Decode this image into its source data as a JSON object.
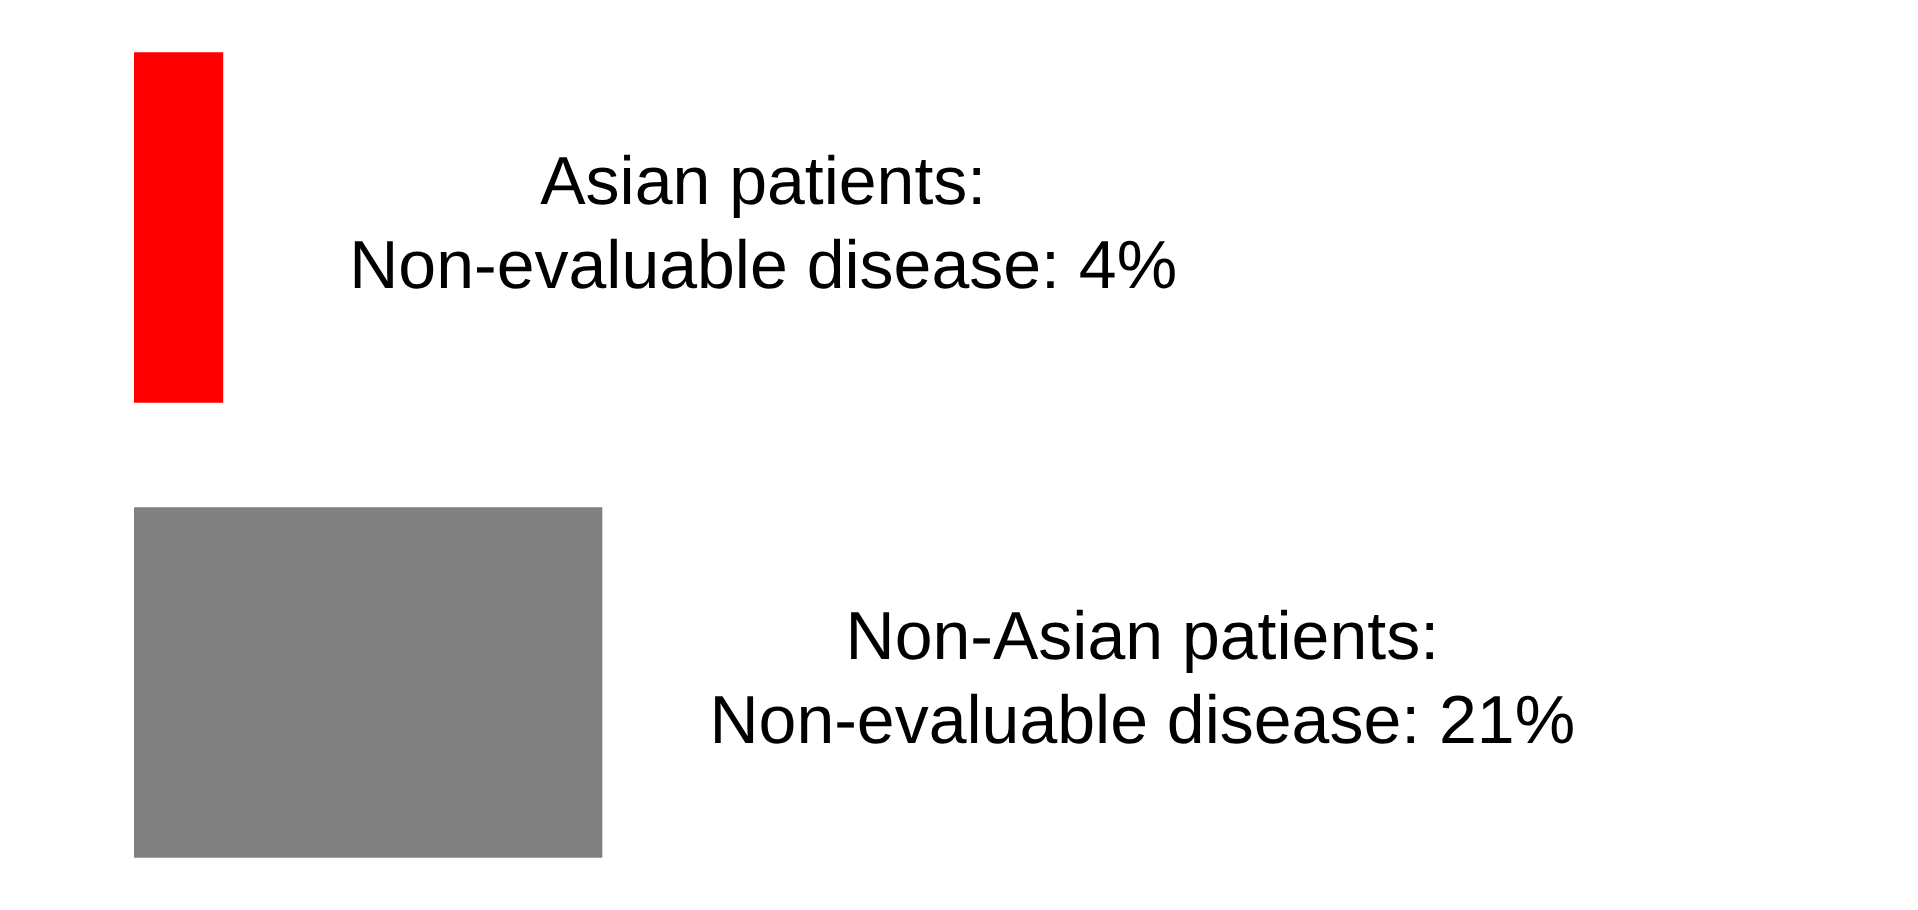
{
  "chart_data": {
    "type": "bar",
    "orientation": "horizontal",
    "categories": [
      null,
      null
    ],
    "values": [
      4,
      21
    ],
    "colors": [
      "#ff0000",
      "#808080"
    ],
    "value_labels": [
      "Asian patients:\nNon-evaluable disease: 4%",
      "Non-Asian patients:\nNon-evaluable disease: 21%"
    ],
    "xlim": [
      0,
      80
    ],
    "tick_labels": false,
    "grid": false,
    "legend": false
  }
}
